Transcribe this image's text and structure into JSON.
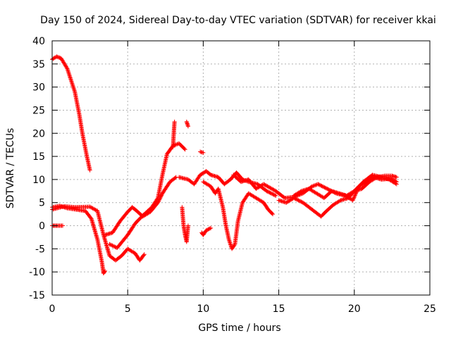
{
  "chart_data": {
    "type": "scatter",
    "title": "Day 150 of 2024, Sidereal Day-to-day VTEC variation (SDTVAR) for receiver kkai",
    "xlabel": "GPS time / hours",
    "ylabel": "SDTVAR / TECUs",
    "xlim": [
      0,
      25
    ],
    "ylim": [
      -15,
      40
    ],
    "xticks": [
      0,
      5,
      10,
      15,
      20,
      25
    ],
    "yticks": [
      -15,
      -10,
      -5,
      0,
      5,
      10,
      15,
      20,
      25,
      30,
      35,
      40
    ],
    "grid": true,
    "marker": "+",
    "marker_color": "#ff0000",
    "series": [
      {
        "name": "s1",
        "points": [
          [
            0,
            36
          ],
          [
            0.3,
            36.6
          ],
          [
            0.6,
            36.2
          ],
          [
            1.0,
            34
          ],
          [
            1.5,
            29
          ],
          [
            1.8,
            24
          ],
          [
            2.0,
            20
          ],
          [
            2.3,
            15
          ],
          [
            2.5,
            12
          ]
        ]
      },
      {
        "name": "s2",
        "points": [
          [
            0,
            4
          ],
          [
            0.5,
            4.3
          ],
          [
            1.0,
            3.8
          ],
          [
            1.6,
            3.5
          ],
          [
            2.2,
            3.2
          ],
          [
            2.6,
            1.5
          ],
          [
            3.0,
            -3
          ],
          [
            3.3,
            -8
          ],
          [
            3.4,
            -10.3
          ],
          [
            3.5,
            -9.8
          ]
        ]
      },
      {
        "name": "s3",
        "points": [
          [
            0,
            3.5
          ],
          [
            0.8,
            4.2
          ],
          [
            1.5,
            4
          ],
          [
            2.5,
            4.1
          ],
          [
            3.0,
            3.2
          ],
          [
            3.4,
            -2
          ],
          [
            3.8,
            -6.5
          ],
          [
            4.2,
            -7.5
          ],
          [
            4.6,
            -6.5
          ],
          [
            5.0,
            -5
          ],
          [
            5.5,
            -6
          ],
          [
            5.8,
            -7.5
          ],
          [
            6.1,
            -6.2
          ]
        ]
      },
      {
        "name": "s4",
        "points": [
          [
            0,
            0
          ],
          [
            0.3,
            0
          ],
          [
            0.7,
            0
          ]
        ]
      },
      {
        "name": "s5",
        "points": [
          [
            3.5,
            -2
          ],
          [
            4.0,
            -1.5
          ],
          [
            4.5,
            1
          ],
          [
            5.0,
            3
          ],
          [
            5.3,
            4
          ],
          [
            5.6,
            3.2
          ],
          [
            6.0,
            2
          ],
          [
            6.5,
            3
          ],
          [
            7.0,
            5
          ],
          [
            7.3,
            7
          ],
          [
            7.8,
            9.5
          ],
          [
            8.2,
            10.5
          ]
        ]
      },
      {
        "name": "s6",
        "points": [
          [
            3.8,
            -4
          ],
          [
            4.3,
            -4.8
          ],
          [
            5.0,
            -2
          ],
          [
            5.5,
            0.5
          ],
          [
            6.0,
            2.2
          ],
          [
            6.6,
            4
          ],
          [
            7.0,
            6
          ],
          [
            7.3,
            11
          ],
          [
            7.6,
            15.5
          ],
          [
            8.0,
            17.3
          ],
          [
            8.4,
            17.8
          ],
          [
            8.8,
            16.5
          ]
        ]
      },
      {
        "name": "s7",
        "points": [
          [
            8.0,
            17
          ],
          [
            8.05,
            20
          ],
          [
            8.1,
            22.5
          ]
        ]
      },
      {
        "name": "s8",
        "points": [
          [
            8.9,
            22.5
          ],
          [
            9.0,
            21.5
          ]
        ]
      },
      {
        "name": "s9",
        "points": [
          [
            9.8,
            16
          ],
          [
            10.0,
            15.8
          ]
        ]
      },
      {
        "name": "s10",
        "points": [
          [
            8.4,
            10.5
          ],
          [
            9.0,
            10
          ],
          [
            9.4,
            9
          ],
          [
            9.8,
            11
          ],
          [
            10.2,
            11.8
          ],
          [
            10.5,
            11
          ],
          [
            11.0,
            10.5
          ],
          [
            11.4,
            9
          ],
          [
            11.8,
            10
          ],
          [
            12.2,
            11.5
          ],
          [
            12.6,
            10
          ],
          [
            13.0,
            9.5
          ],
          [
            13.6,
            9
          ],
          [
            14.2,
            7.5
          ],
          [
            14.8,
            6.5
          ]
        ]
      },
      {
        "name": "s11",
        "points": [
          [
            8.6,
            4
          ],
          [
            8.7,
            0
          ],
          [
            8.8,
            -2
          ],
          [
            8.9,
            -3.5
          ],
          [
            9.0,
            0
          ]
        ]
      },
      {
        "name": "s12",
        "points": [
          [
            9.9,
            -1.5
          ],
          [
            10.0,
            -2
          ],
          [
            10.2,
            -1
          ],
          [
            10.5,
            -0.5
          ]
        ]
      },
      {
        "name": "s13",
        "points": [
          [
            10.0,
            9.5
          ],
          [
            10.5,
            8.5
          ],
          [
            10.8,
            7
          ],
          [
            11.0,
            8
          ],
          [
            11.3,
            4
          ],
          [
            11.5,
            0
          ],
          [
            11.7,
            -3
          ],
          [
            11.9,
            -5
          ],
          [
            12.1,
            -4
          ],
          [
            12.3,
            1
          ],
          [
            12.6,
            5
          ],
          [
            13.0,
            7
          ],
          [
            13.5,
            6
          ],
          [
            14.0,
            5
          ],
          [
            14.3,
            3.5
          ],
          [
            14.6,
            2.5
          ]
        ]
      },
      {
        "name": "s14",
        "points": [
          [
            12.0,
            11
          ],
          [
            12.5,
            9.5
          ],
          [
            13.0,
            10
          ],
          [
            13.5,
            8
          ],
          [
            14.0,
            9
          ],
          [
            14.8,
            7.5
          ],
          [
            15.4,
            6
          ],
          [
            16.0,
            6.2
          ],
          [
            16.6,
            7
          ],
          [
            17.2,
            8.5
          ],
          [
            17.6,
            9
          ],
          [
            18.2,
            8
          ],
          [
            18.8,
            7
          ],
          [
            19.4,
            6.5
          ],
          [
            19.9,
            5.5
          ],
          [
            20.3,
            8.5
          ],
          [
            20.8,
            9.5
          ],
          [
            21.3,
            10.5
          ],
          [
            21.8,
            10
          ],
          [
            22.4,
            10.2
          ],
          [
            22.8,
            9.5
          ]
        ]
      },
      {
        "name": "s15",
        "points": [
          [
            15.0,
            5.5
          ],
          [
            15.5,
            5
          ],
          [
            16.0,
            6
          ],
          [
            16.6,
            5
          ],
          [
            17.0,
            4
          ],
          [
            17.4,
            3
          ],
          [
            17.8,
            2
          ],
          [
            18.1,
            3
          ],
          [
            18.6,
            4.5
          ],
          [
            19.1,
            5.5
          ],
          [
            19.6,
            6
          ],
          [
            20.0,
            7.5
          ],
          [
            20.6,
            9.5
          ],
          [
            21.2,
            11
          ],
          [
            21.8,
            10.5
          ],
          [
            22.3,
            10
          ],
          [
            22.8,
            9
          ]
        ]
      },
      {
        "name": "s16",
        "points": [
          [
            16.0,
            6.5
          ],
          [
            16.5,
            7.5
          ],
          [
            17.0,
            8
          ],
          [
            17.5,
            7
          ],
          [
            18.0,
            6
          ],
          [
            18.5,
            7.5
          ],
          [
            19.0,
            7
          ],
          [
            19.5,
            6.5
          ],
          [
            20.0,
            7.5
          ],
          [
            20.5,
            8
          ],
          [
            21.0,
            9.5
          ],
          [
            21.5,
            10.5
          ],
          [
            22.0,
            10.8
          ],
          [
            22.5,
            10.8
          ],
          [
            22.8,
            10.5
          ]
        ]
      }
    ]
  }
}
